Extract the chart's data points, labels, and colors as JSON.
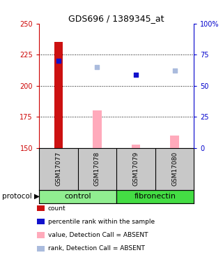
{
  "title": "GDS696 / 1389345_at",
  "samples": [
    "GSM17077",
    "GSM17078",
    "GSM17079",
    "GSM17080"
  ],
  "ylim_left": [
    150,
    250
  ],
  "ylim_right": [
    0,
    100
  ],
  "yticks_left": [
    150,
    175,
    200,
    225,
    250
  ],
  "yticks_right": [
    0,
    25,
    50,
    75,
    100
  ],
  "ytick_labels_right": [
    "0",
    "25",
    "50",
    "75",
    "100%"
  ],
  "red_bars": [
    235,
    null,
    153,
    null
  ],
  "red_bar_bottoms": [
    150,
    null,
    150,
    null
  ],
  "pink_bars": [
    null,
    180,
    153,
    160
  ],
  "pink_bar_bottoms": [
    null,
    150,
    150,
    150
  ],
  "dark_blue_squares": [
    220,
    null,
    209,
    null
  ],
  "light_blue_squares": [
    null,
    215,
    null,
    212
  ],
  "group_row_color": "#c8c8c8",
  "bar_width": 0.22,
  "red_color": "#cc1111",
  "pink_color": "#ffaabb",
  "dark_blue_color": "#1111cc",
  "light_blue_color": "#aabbdd",
  "left_axis_color": "#cc0000",
  "right_axis_color": "#0000cc",
  "bg_color": "#ffffff",
  "ctrl_color": "#90ee90",
  "fibro_color": "#44dd44",
  "legend_labels": [
    "count",
    "percentile rank within the sample",
    "value, Detection Call = ABSENT",
    "rank, Detection Call = ABSENT"
  ],
  "legend_colors": [
    "#cc1111",
    "#1111cc",
    "#ffaabb",
    "#aabbdd"
  ]
}
